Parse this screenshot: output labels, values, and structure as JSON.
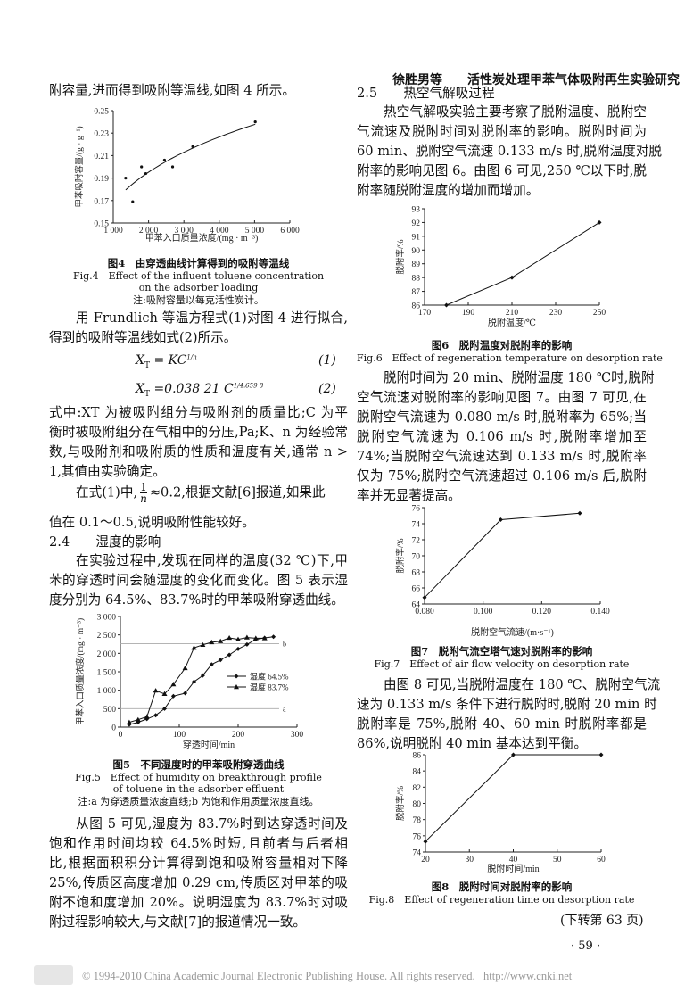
{
  "header": {
    "authors": "徐胜男等",
    "title": "活性炭处理甲苯气体吸附再生实验研究"
  },
  "left": {
    "p0": [
      "附容量,进而得到吸附等温线,如图 4 所示。"
    ],
    "fig4": {
      "zh": "图4　由穿透曲线计算得到的吸附等温线",
      "en1": "Fig.4　Effect of the influent toluene concentration",
      "en2": "on the adsorber loading",
      "note": "注:吸附容量以每克活性炭计。"
    },
    "p1": [
      "用 Frundlich 等温方程式(1)对图 4 进行拟合,",
      "得到的吸附等温线如式(2)所示。"
    ],
    "eq1": {
      "lhs": "X",
      "sub": "T",
      "rhs": "= KC",
      "exp": "1/n",
      "num": "(1)"
    },
    "eq2": {
      "lhs": "X",
      "sub": "T",
      "rhs": "=0.038 21 C",
      "exp": "1/4.659 8",
      "num": "(2)"
    },
    "p2": [
      "式中:XT 为被吸附组分与吸附剂的质量比;C 为平",
      "衡时被吸附组分在气相中的分压,Pa;K、n 为经验常",
      "数,与吸附剂和吸附质的性质和温度有关,通常 n >",
      "1,其值由实验确定。"
    ],
    "p3a": "在式(1)中,",
    "p3frac_num": "1",
    "p3frac_den": "n",
    "p3b": "≈0.2,根据文献[6]报道,如果此",
    "p3c": "值在 0.1～0.5,说明吸附性能较好。",
    "h24": "2.4　　湿度的影响",
    "p4": [
      "在实验过程中,发现在同样的温度(32 ℃)下,甲",
      "苯的穿透时间会随湿度的变化而变化。图 5 表示湿",
      "度分别为 64.5%、83.7%时的甲苯吸附穿透曲线。"
    ],
    "fig5": {
      "zh": "图5　不同湿度时的甲苯吸附穿透曲线",
      "en1": "Fig.5　Effect of humidity on breakthrough profile",
      "en2": "of toluene in the adsorber effluent",
      "note": "注:a 为穿透质量浓度直线;b 为饱和作用质量浓度直线。"
    },
    "p5": [
      "从图 5 可见,湿度为 83.7%时到达穿透时间及",
      "饱和作用时间均较 64.5%时短,且前者与后者相",
      "比,根据面积积分计算得到饱和吸附容量相对下降",
      "25%,传质区高度增加 0.29 cm,传质区对甲苯的吸",
      "附不饱和度增加 20%。说明湿度为 83.7%时对吸",
      "附过程影响较大,与文献[7]的报道情况一致。"
    ]
  },
  "right": {
    "h25": "2.5　　热空气解吸过程",
    "p0": [
      "热空气解吸实验主要考察了脱附温度、脱附空",
      "气流速及脱附时间对脱附率的影响。脱附时间为",
      "60 min、脱附空气流速 0.133 m/s 时,脱附温度对脱",
      "附率的影响见图 6。由图 6 可见,250 ℃以下时,脱",
      "附率随脱附温度的增加而增加。"
    ],
    "fig6": {
      "zh": "图6　脱附温度对脱附率的影响",
      "en1": "Fig.6　Effect of regeneration temperature on desorption rate"
    },
    "p1": [
      "脱附时间为 20 min、脱附温度 180 ℃时,脱附",
      "空气流速对脱附率的影响见图 7。由图 7 可见,在",
      "脱附空气流速为 0.080 m/s 时,脱附率为 65%;当",
      "脱附空气流速为 0.106 m/s 时,脱附率增加至",
      "74%;当脱附空气流速达到 0.133 m/s 时,脱附率",
      "仅为 75%;脱附空气流速超过 0.106 m/s 后,脱附",
      "率并无显著提高。"
    ],
    "fig7": {
      "zh": "图7　脱附气流空塔气速对脱附率的影响",
      "en1": "Fig.7　Effect of air flow velocity on desorption rate"
    },
    "p2": [
      "由图 8 可见,当脱附温度在 180 ℃、脱附空气流",
      "速为 0.133 m/s 条件下进行脱附时,脱附 20 min 时",
      "脱附率是 75%,脱附 40、60 min 时脱附率都是",
      "86%,说明脱附 40 min 基本达到平衡。"
    ],
    "fig8": {
      "zh": "图8　脱附时间对脱附率的影响",
      "en1": "Fig.8　Effect of regeneration time on desorption rate"
    },
    "continued": "(下转第 63 页)"
  },
  "page_number": "· 59 ·",
  "footer": {
    "copyright": "© 1994-2010 China Academic Journal Electronic Publishing House. All rights reserved.",
    "url": "http://www.cnki.net"
  },
  "chart_data": [
    {
      "id": "fig4",
      "type": "scatter",
      "xlabel": "甲苯入口质量浓度/(mg · m⁻³)",
      "ylabel": "甲苯吸附容量/(g · g⁻¹)",
      "xlim": [
        1000,
        6000
      ],
      "ylim": [
        0.15,
        0.25
      ],
      "xticks": [
        1000,
        2000,
        3000,
        4000,
        5000,
        6000
      ],
      "xticklabels": [
        "1 000",
        "2 000",
        "3 000",
        "4 000",
        "5 000",
        "6 000"
      ],
      "yticks": [
        0.15,
        0.17,
        0.19,
        0.21,
        0.23,
        0.25
      ],
      "yticklabels": [
        "0.15",
        "0.17",
        "0.19",
        "0.21",
        "0.23",
        "0.25"
      ],
      "x": [
        1350,
        1550,
        1800,
        1920,
        2450,
        2680,
        3250,
        5020
      ],
      "y": [
        0.19,
        0.169,
        0.2,
        0.194,
        0.206,
        0.2,
        0.218,
        0.24
      ],
      "fit": {
        "K": 0.03821,
        "n": 4.6598,
        "x_range": [
          1350,
          5020
        ]
      }
    },
    {
      "id": "fig5",
      "type": "line",
      "xlabel": "穿透时间/min",
      "ylabel": "甲苯入口质量浓度/(mg · m⁻³)",
      "xlim": [
        0,
        300
      ],
      "ylim": [
        0,
        3000
      ],
      "xticks": [
        0,
        100,
        200,
        300
      ],
      "xticklabels": [
        "0",
        "100",
        "200",
        "300"
      ],
      "yticks": [
        0,
        500,
        1000,
        1500,
        2000,
        2500,
        3000
      ],
      "yticklabels": [
        "0",
        "500",
        "1 000",
        "1 500",
        "2 000",
        "2 500",
        "3 000"
      ],
      "legend": "right-center",
      "series": [
        {
          "name": "湿度 64.5%",
          "marker": "diamond",
          "x": [
            15,
            30,
            45,
            60,
            75,
            90,
            110,
            125,
            140,
            155,
            170,
            185,
            200,
            215,
            230,
            245,
            260
          ],
          "y": [
            70,
            130,
            220,
            320,
            500,
            840,
            920,
            1230,
            1400,
            1700,
            1820,
            1960,
            2120,
            2240,
            2380,
            2420,
            2450
          ]
        },
        {
          "name": "湿度 83.7%",
          "marker": "triangle",
          "x": [
            15,
            30,
            45,
            60,
            75,
            90,
            110,
            125,
            140,
            155,
            170,
            185,
            200,
            215,
            230,
            245
          ],
          "y": [
            130,
            200,
            280,
            990,
            900,
            1160,
            1600,
            2150,
            2230,
            2300,
            2330,
            2420,
            2380,
            2430,
            2410,
            2410
          ]
        }
      ],
      "hlines": [
        {
          "label": "a",
          "y": 500
        },
        {
          "label": "b",
          "y": 2260
        }
      ]
    },
    {
      "id": "fig6",
      "type": "line",
      "xlabel": "脱附温度/℃",
      "ylabel": "脱附率/%",
      "xlim": [
        170,
        250
      ],
      "ylim": [
        86,
        93
      ],
      "xticks": [
        170,
        190,
        210,
        230,
        250
      ],
      "xticklabels": [
        "170",
        "190",
        "210",
        "230",
        "250"
      ],
      "yticks": [
        86,
        87,
        88,
        89,
        90,
        91,
        92,
        93
      ],
      "yticklabels": [
        "86",
        "87",
        "88",
        "89",
        "90",
        "91",
        "92",
        "93"
      ],
      "x": [
        180,
        210,
        250
      ],
      "y": [
        86,
        88,
        92
      ]
    },
    {
      "id": "fig7",
      "type": "line",
      "xlabel": "脱附空气流速/(m·s⁻¹)",
      "ylabel": "脱附率/%",
      "xlim": [
        0.08,
        0.14
      ],
      "ylim": [
        64,
        76
      ],
      "xticks": [
        0.08,
        0.1,
        0.12,
        0.14
      ],
      "xticklabels": [
        "0.080",
        "0.100",
        "0.120",
        "0.140"
      ],
      "yticks": [
        64,
        66,
        68,
        70,
        72,
        74,
        76
      ],
      "yticklabels": [
        "64",
        "66",
        "68",
        "70",
        "72",
        "74",
        "76"
      ],
      "x": [
        0.08,
        0.106,
        0.133
      ],
      "y": [
        64.8,
        74.5,
        75.3
      ]
    },
    {
      "id": "fig8",
      "type": "line",
      "xlabel": "脱附时间/min",
      "ylabel": "脱附率/%",
      "xlim": [
        20,
        60
      ],
      "ylim": [
        74,
        86
      ],
      "xticks": [
        20,
        30,
        40,
        50,
        60
      ],
      "xticklabels": [
        "20",
        "30",
        "40",
        "50",
        "60"
      ],
      "yticks": [
        74,
        76,
        78,
        80,
        82,
        84,
        86
      ],
      "yticklabels": [
        "74",
        "76",
        "78",
        "80",
        "82",
        "84",
        "86"
      ],
      "x": [
        20,
        40,
        60
      ],
      "y": [
        75.3,
        86,
        86
      ]
    }
  ]
}
